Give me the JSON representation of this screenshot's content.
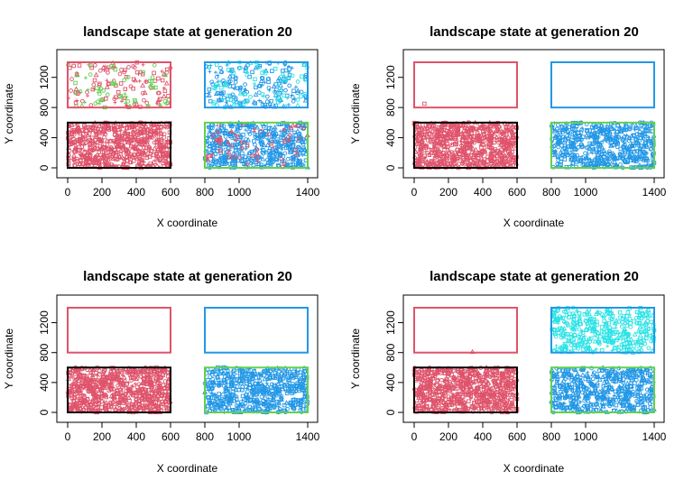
{
  "chart_data": [
    {
      "type": "scatter",
      "title": "landscape state at generation 20",
      "xlabel": "X coordinate",
      "ylabel": "Y coordinate",
      "xlim": [
        0,
        1400
      ],
      "ylim": [
        0,
        1400
      ],
      "xticks": [
        0,
        200,
        400,
        600,
        800,
        1000,
        1400
      ],
      "yticks": [
        0,
        400,
        800,
        1200
      ],
      "patches": [
        {
          "name": "bottom-left",
          "x": [
            0,
            600
          ],
          "y": [
            0,
            600
          ],
          "color": "#000000"
        },
        {
          "name": "top-left",
          "x": [
            0,
            600
          ],
          "y": [
            800,
            1400
          ],
          "color": "#DF536B"
        },
        {
          "name": "bottom-right",
          "x": [
            800,
            1400
          ],
          "y": [
            0,
            600
          ],
          "color": "#61D04F"
        },
        {
          "name": "top-right",
          "x": [
            800,
            1400
          ],
          "y": [
            800,
            1400
          ],
          "color": "#2297E6"
        }
      ],
      "point_groups": [
        {
          "color": "#DF536B",
          "x": [
            0,
            600
          ],
          "y": [
            0,
            600
          ],
          "count": 700
        },
        {
          "color": "#DF536B",
          "x": [
            0,
            600
          ],
          "y": [
            800,
            1400
          ],
          "count": 110
        },
        {
          "color": "#61D04F",
          "x": [
            0,
            600
          ],
          "y": [
            800,
            1400
          ],
          "count": 60
        },
        {
          "color": "#2297E6",
          "x": [
            800,
            1400
          ],
          "y": [
            0,
            600
          ],
          "count": 500
        },
        {
          "color": "#DF536B",
          "x": [
            800,
            1400
          ],
          "y": [
            0,
            600
          ],
          "count": 60
        },
        {
          "color": "#2297E6",
          "x": [
            800,
            1400
          ],
          "y": [
            800,
            1400
          ],
          "count": 170
        },
        {
          "color": "#28E2E5",
          "x": [
            800,
            1400
          ],
          "y": [
            800,
            1400
          ],
          "count": 70
        }
      ]
    },
    {
      "type": "scatter",
      "title": "landscape state at generation 20",
      "xlabel": "X coordinate",
      "ylabel": "Y coordinate",
      "xlim": [
        0,
        1400
      ],
      "ylim": [
        0,
        1400
      ],
      "xticks": [
        0,
        200,
        400,
        600,
        800,
        1000,
        1400
      ],
      "yticks": [
        0,
        400,
        800,
        1200
      ],
      "patches": [
        {
          "name": "bottom-left",
          "x": [
            0,
            600
          ],
          "y": [
            0,
            600
          ],
          "color": "#000000"
        },
        {
          "name": "top-left",
          "x": [
            0,
            600
          ],
          "y": [
            800,
            1400
          ],
          "color": "#DF536B"
        },
        {
          "name": "bottom-right",
          "x": [
            800,
            1400
          ],
          "y": [
            0,
            600
          ],
          "color": "#61D04F"
        },
        {
          "name": "top-right",
          "x": [
            800,
            1400
          ],
          "y": [
            800,
            1400
          ],
          "color": "#2297E6"
        }
      ],
      "point_groups": [
        {
          "color": "#DF536B",
          "x": [
            0,
            600
          ],
          "y": [
            0,
            600
          ],
          "count": 800
        },
        {
          "color": "#DF536B",
          "x": [
            60,
            60
          ],
          "y": [
            850,
            850
          ],
          "count": 1
        },
        {
          "color": "#2297E6",
          "x": [
            800,
            1400
          ],
          "y": [
            0,
            600
          ],
          "count": 600
        }
      ]
    },
    {
      "type": "scatter",
      "title": "landscape state at generation 20",
      "xlabel": "X coordinate",
      "ylabel": "Y coordinate",
      "xlim": [
        0,
        1400
      ],
      "ylim": [
        0,
        1400
      ],
      "xticks": [
        0,
        200,
        400,
        600,
        800,
        1000,
        1400
      ],
      "yticks": [
        0,
        400,
        800,
        1200
      ],
      "patches": [
        {
          "name": "bottom-left",
          "x": [
            0,
            600
          ],
          "y": [
            0,
            600
          ],
          "color": "#000000"
        },
        {
          "name": "top-left",
          "x": [
            0,
            600
          ],
          "y": [
            800,
            1400
          ],
          "color": "#DF536B"
        },
        {
          "name": "bottom-right",
          "x": [
            800,
            1400
          ],
          "y": [
            0,
            600
          ],
          "color": "#61D04F"
        },
        {
          "name": "top-right",
          "x": [
            800,
            1400
          ],
          "y": [
            800,
            1400
          ],
          "color": "#2297E6"
        }
      ],
      "point_groups": [
        {
          "color": "#DF536B",
          "x": [
            0,
            600
          ],
          "y": [
            0,
            600
          ],
          "count": 800
        },
        {
          "color": "#2297E6",
          "x": [
            800,
            1400
          ],
          "y": [
            0,
            600
          ],
          "count": 600
        }
      ]
    },
    {
      "type": "scatter",
      "title": "landscape state at generation 20",
      "xlabel": "X coordinate",
      "ylabel": "Y coordinate",
      "xlim": [
        0,
        1400
      ],
      "ylim": [
        0,
        1400
      ],
      "xticks": [
        0,
        200,
        400,
        600,
        800,
        1000,
        1400
      ],
      "yticks": [
        0,
        400,
        800,
        1200
      ],
      "patches": [
        {
          "name": "bottom-left",
          "x": [
            0,
            600
          ],
          "y": [
            0,
            600
          ],
          "color": "#000000"
        },
        {
          "name": "top-left",
          "x": [
            0,
            600
          ],
          "y": [
            800,
            1400
          ],
          "color": "#DF536B"
        },
        {
          "name": "bottom-right",
          "x": [
            800,
            1400
          ],
          "y": [
            0,
            600
          ],
          "color": "#61D04F"
        },
        {
          "name": "top-right",
          "x": [
            800,
            1400
          ],
          "y": [
            800,
            1400
          ],
          "color": "#2297E6"
        }
      ],
      "point_groups": [
        {
          "color": "#DF536B",
          "x": [
            0,
            600
          ],
          "y": [
            0,
            600
          ],
          "count": 800
        },
        {
          "color": "#DF536B",
          "x": [
            340,
            340
          ],
          "y": [
            810,
            810
          ],
          "count": 1
        },
        {
          "color": "#2297E6",
          "x": [
            800,
            1400
          ],
          "y": [
            0,
            600
          ],
          "count": 600
        },
        {
          "color": "#28E2E5",
          "x": [
            800,
            1400
          ],
          "y": [
            800,
            1400
          ],
          "count": 400
        }
      ]
    }
  ]
}
